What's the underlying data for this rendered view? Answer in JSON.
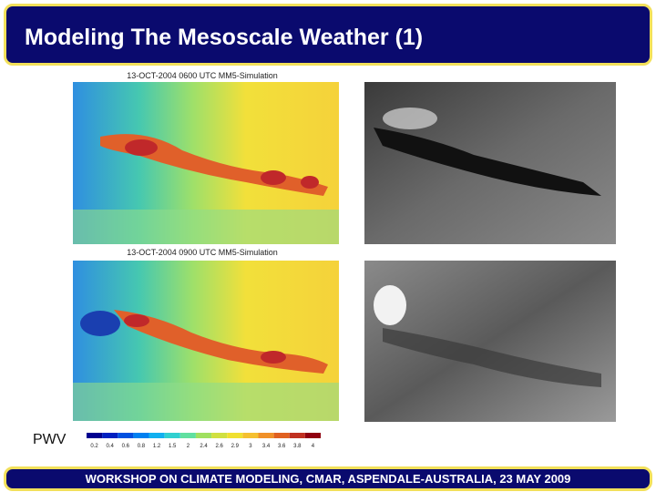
{
  "header": {
    "title": "Modeling The Mesoscale Weather (1)"
  },
  "panels": [
    {
      "title": "13-OCT-2004 0600 UTC MM5-Simulation"
    },
    {
      "title": "13-OCT-2004 0900 UTC MM5-Simulation"
    }
  ],
  "colorbar": {
    "label": "PWV",
    "ticks": [
      "0.2",
      "0.4",
      "0.6",
      "0.8",
      "1.2",
      "1.5",
      "2",
      "2.4",
      "2.6",
      "2.9",
      "3",
      "3.4",
      "3.6",
      "3.8",
      "4"
    ]
  },
  "footer": {
    "text": "WORKSHOP ON CLIMATE MODELING, CMAR, ASPENDALE-AUSTRALIA, 23 MAY 2009"
  }
}
